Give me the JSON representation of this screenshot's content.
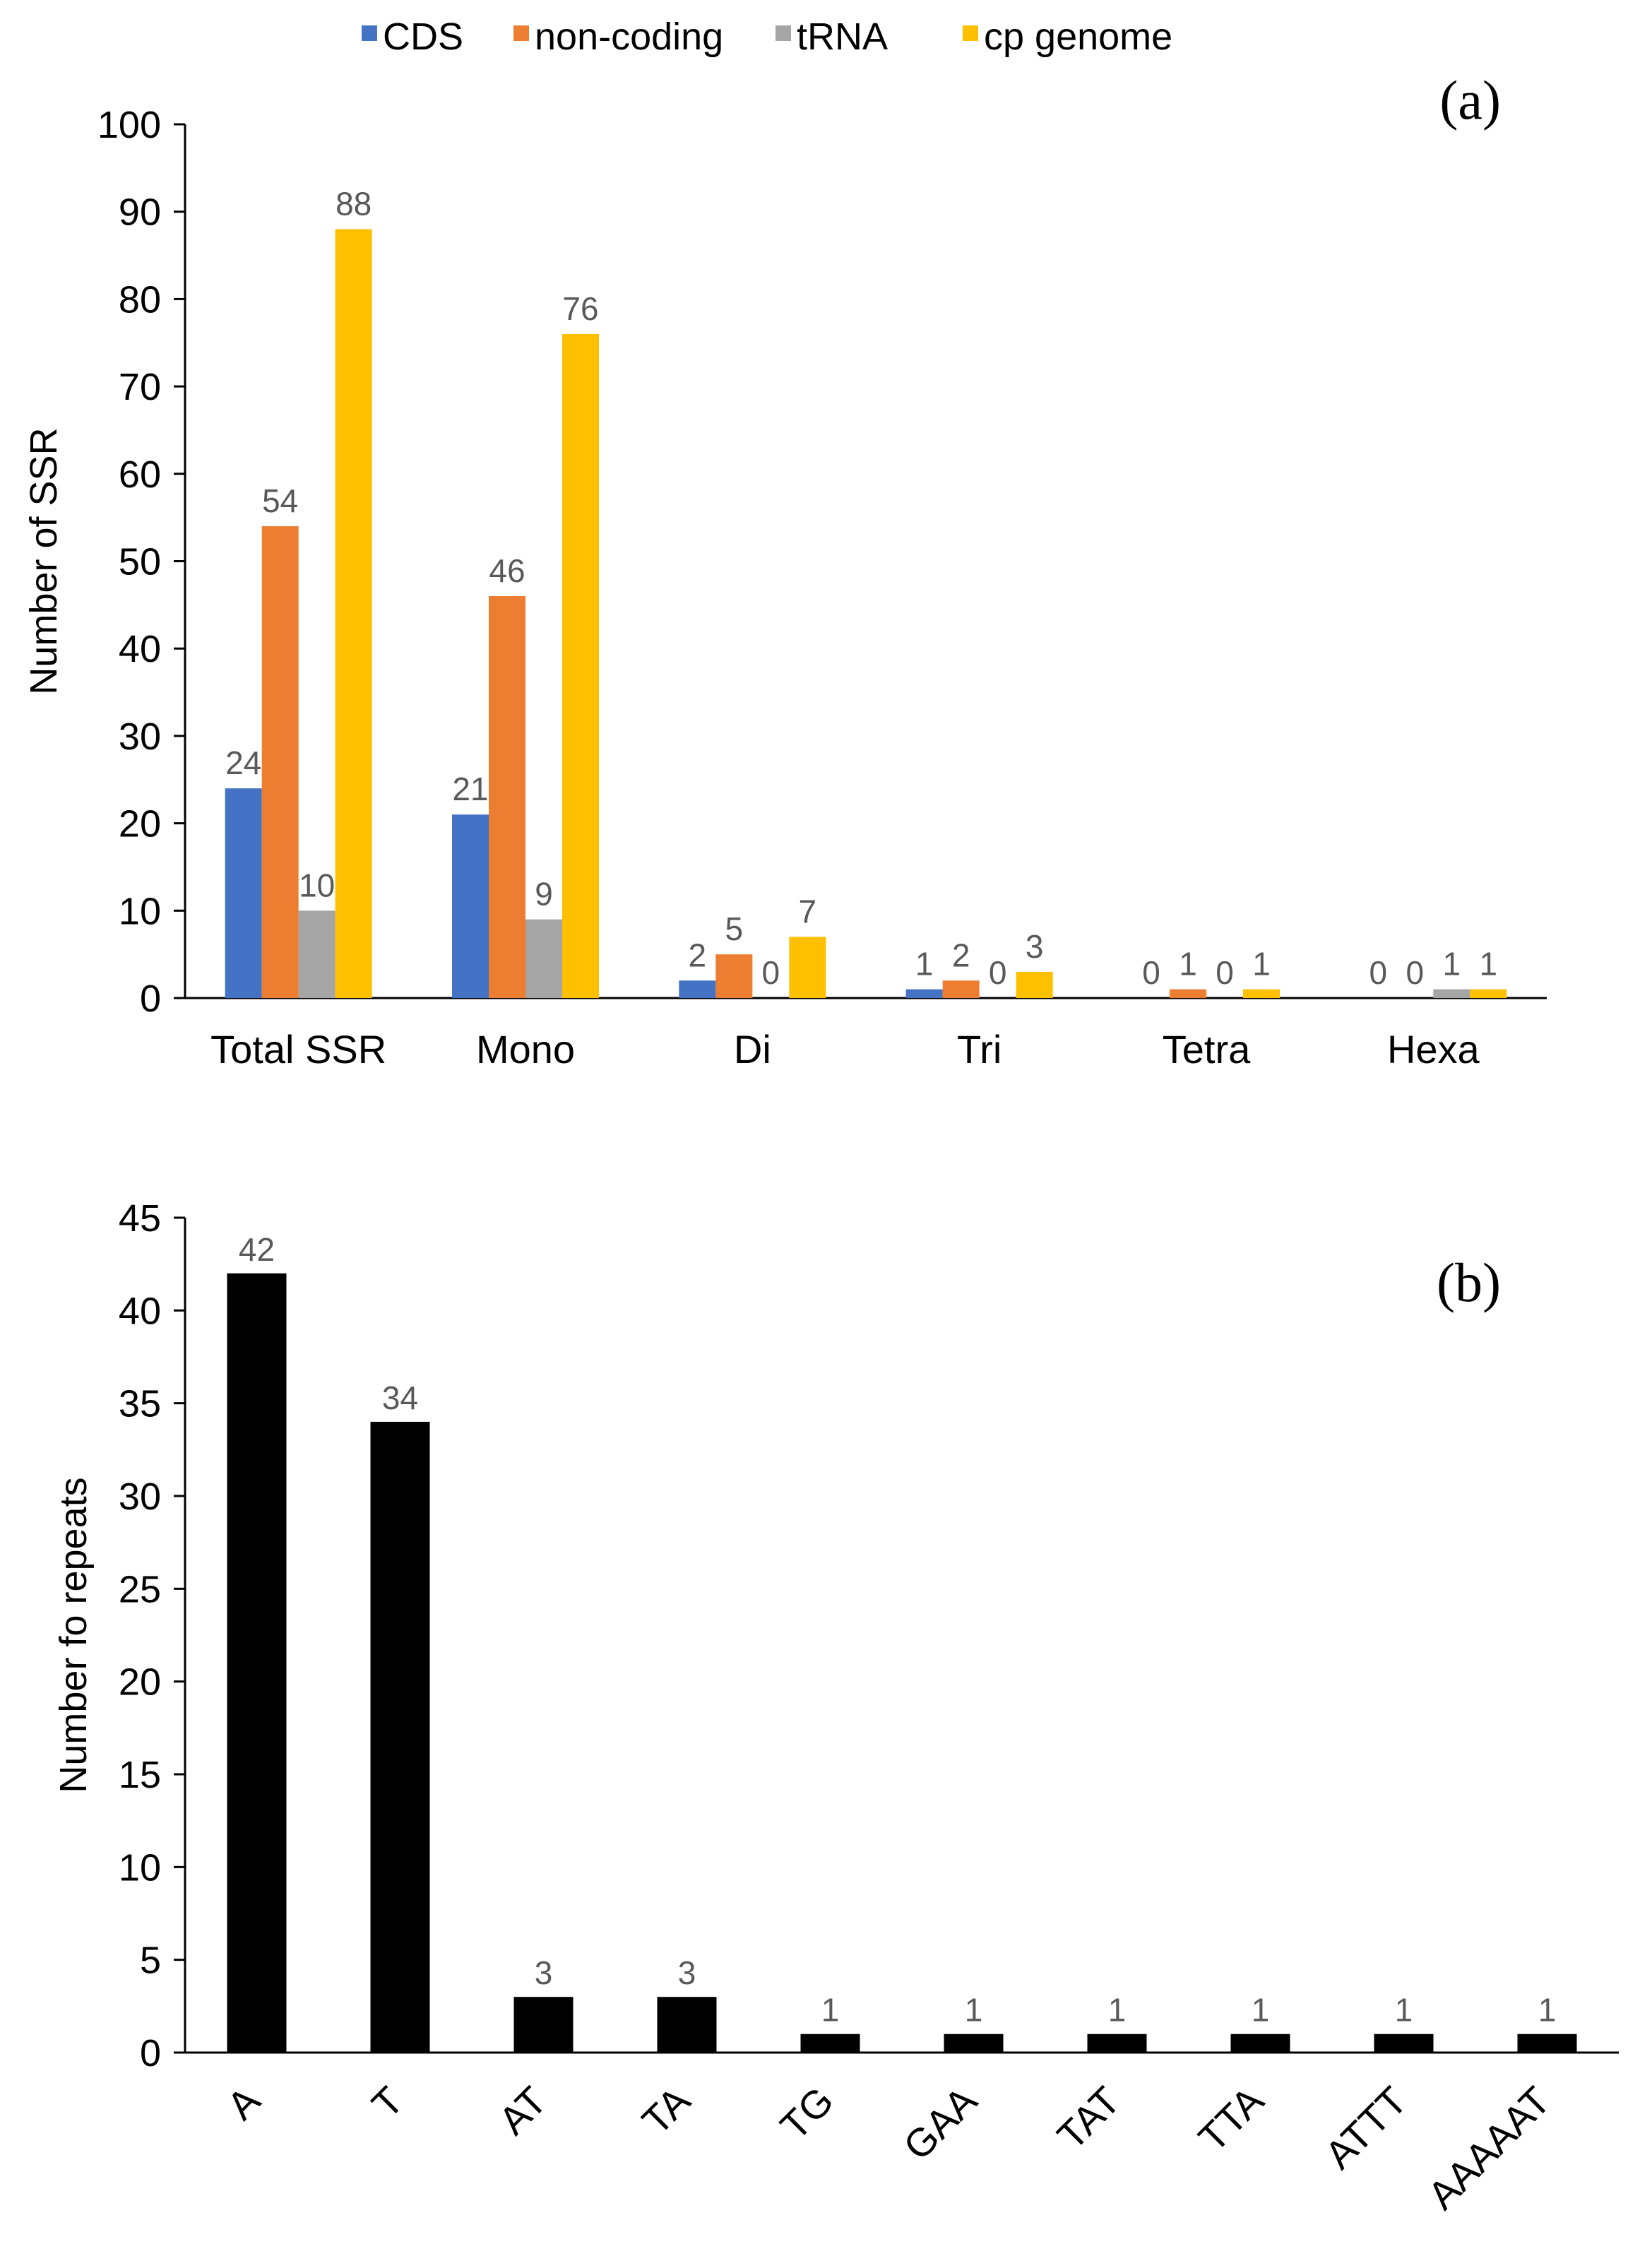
{
  "chart_data": [
    {
      "type": "bar",
      "panel_label": "(a)",
      "categories": [
        "Total SSR",
        "Mono",
        "Di",
        "Tri",
        "Tetra",
        "Hexa"
      ],
      "series": [
        {
          "name": "CDS",
          "color": "#4472C4",
          "values": [
            24,
            21,
            2,
            1,
            0,
            0
          ]
        },
        {
          "name": "non-coding",
          "color": "#ED7D31",
          "values": [
            54,
            46,
            5,
            2,
            1,
            0
          ]
        },
        {
          "name": "tRNA",
          "color": "#A5A5A5",
          "values": [
            10,
            9,
            0,
            0,
            0,
            1
          ]
        },
        {
          "name": "cp genome",
          "color": "#FFC000",
          "values": [
            88,
            76,
            7,
            3,
            1,
            1
          ]
        }
      ],
      "ylabel": "Number of SSR",
      "xlabel": "",
      "ylim": [
        0,
        100
      ],
      "yticks": [
        "0",
        "10",
        "20",
        "30",
        "40",
        "50",
        "60",
        "70",
        "80",
        "90",
        "100"
      ],
      "legend": "top"
    },
    {
      "type": "bar",
      "panel_label": "(b)",
      "categories": [
        "A",
        "T",
        "AT",
        "TA",
        "TG",
        "GAA",
        "TAT",
        "TTA",
        "ATTT",
        "AAAAAT"
      ],
      "series": [
        {
          "name": "repeats",
          "color": "#000000",
          "values": [
            42,
            34,
            3,
            3,
            1,
            1,
            1,
            1,
            1,
            1
          ]
        }
      ],
      "ylabel": "Number fo repeats",
      "xlabel": "",
      "ylim": [
        0,
        45
      ],
      "yticks": [
        "0",
        "5",
        "10",
        "15",
        "20",
        "25",
        "30",
        "35",
        "40",
        "45"
      ]
    }
  ]
}
